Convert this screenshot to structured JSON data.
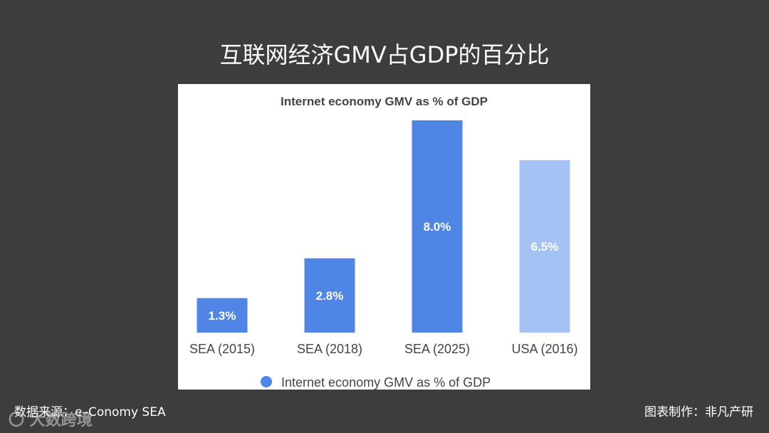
{
  "slide": {
    "title": "互联网经济GMV占GDP的百分比",
    "source": "数据来源：e–Conomy SEA",
    "credit": "图表制作：非凡产研",
    "watermark": "大数跨境"
  },
  "chart_data": {
    "type": "bar",
    "title": "Internet economy GMV as % of GDP",
    "categories": [
      "SEA (2015)",
      "SEA (2018)",
      "SEA (2025)",
      "USA (2016)"
    ],
    "series": [
      {
        "name": "Internet economy GMV as % of GDP",
        "values": [
          1.3,
          2.8,
          8.0,
          6.5
        ]
      }
    ],
    "data_labels": [
      "1.3%",
      "2.8%",
      "8.0%",
      "6.5%"
    ],
    "bar_colors": [
      "#4f86e6",
      "#4f86e6",
      "#4f86e6",
      "#a4c2f4"
    ],
    "ylim": [
      0,
      8.0
    ],
    "grid": false,
    "y_axis_shown": false,
    "legend_position": "bottom"
  }
}
